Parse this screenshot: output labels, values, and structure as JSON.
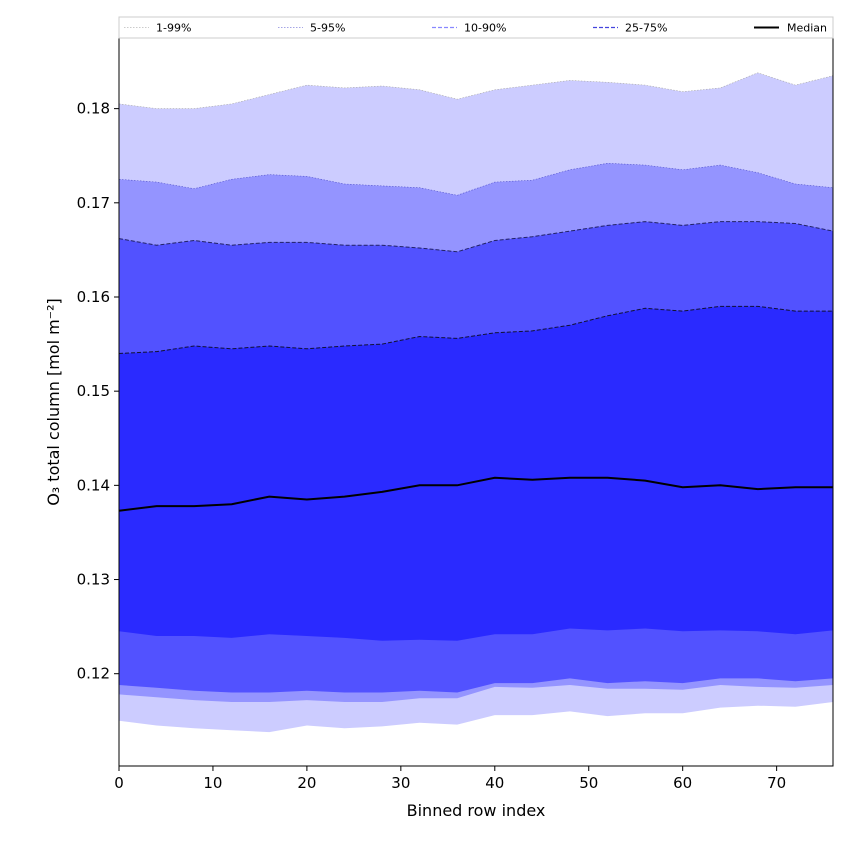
{
  "chart_data": {
    "type": "area",
    "xlabel": "Binned row index",
    "ylabel": "O₃ total column [mol m⁻²]",
    "xlim": [
      0,
      76
    ],
    "ylim": [
      0.1102,
      0.1875
    ],
    "xticks": [
      0,
      10,
      20,
      30,
      40,
      50,
      60,
      70
    ],
    "yticks": [
      0.12,
      0.13,
      0.14,
      0.15,
      0.16,
      0.17,
      0.18
    ],
    "ytick_labels": [
      "0.12",
      "0.13",
      "0.14",
      "0.15",
      "0.16",
      "0.17",
      "0.18"
    ],
    "legend_position": "top",
    "x": [
      0,
      4,
      8,
      12,
      16,
      20,
      24,
      28,
      32,
      36,
      40,
      44,
      48,
      52,
      56,
      60,
      64,
      68,
      72,
      76
    ],
    "series": [
      {
        "name": "1-99%",
        "color": "#ccccff",
        "lower": [
          0.115,
          0.1145,
          0.1142,
          0.114,
          0.1138,
          0.1145,
          0.1142,
          0.1144,
          0.1148,
          0.1146,
          0.1156,
          0.1156,
          0.116,
          0.1155,
          0.1158,
          0.1158,
          0.1164,
          0.1166,
          0.1165,
          0.117
        ],
        "upper": [
          0.1805,
          0.18,
          0.18,
          0.1805,
          0.1815,
          0.1825,
          0.1822,
          0.1824,
          0.182,
          0.181,
          0.182,
          0.1825,
          0.183,
          0.1828,
          0.1825,
          0.1818,
          0.1822,
          0.1838,
          0.1825,
          0.1835
        ]
      },
      {
        "name": "5-95%",
        "color": "#9494ff",
        "lower": [
          0.1178,
          0.1175,
          0.1172,
          0.117,
          0.117,
          0.1172,
          0.117,
          0.117,
          0.1174,
          0.1174,
          0.1186,
          0.1185,
          0.1188,
          0.1184,
          0.1184,
          0.1183,
          0.1188,
          0.1186,
          0.1185,
          0.1188
        ],
        "upper": [
          0.1725,
          0.1722,
          0.1715,
          0.1725,
          0.173,
          0.1728,
          0.172,
          0.1718,
          0.1716,
          0.1708,
          0.1722,
          0.1724,
          0.1735,
          0.1742,
          0.174,
          0.1735,
          0.174,
          0.1732,
          0.172,
          0.1716
        ]
      },
      {
        "name": "10-90%",
        "color": "#5252ff",
        "lower": [
          0.1188,
          0.1185,
          0.1182,
          0.118,
          0.118,
          0.1182,
          0.118,
          0.118,
          0.1182,
          0.118,
          0.119,
          0.119,
          0.1195,
          0.119,
          0.1192,
          0.119,
          0.1195,
          0.1195,
          0.1192,
          0.1195
        ],
        "upper": [
          0.1662,
          0.1655,
          0.166,
          0.1655,
          0.1658,
          0.1658,
          0.1655,
          0.1655,
          0.1652,
          0.1648,
          0.166,
          0.1664,
          0.167,
          0.1676,
          0.168,
          0.1676,
          0.168,
          0.168,
          0.1678,
          0.167
        ]
      },
      {
        "name": "25-75%",
        "color": "#2a2aff",
        "lower": [
          0.1245,
          0.124,
          0.124,
          0.1238,
          0.1242,
          0.124,
          0.1238,
          0.1235,
          0.1236,
          0.1235,
          0.1242,
          0.1242,
          0.1248,
          0.1246,
          0.1248,
          0.1245,
          0.1246,
          0.1245,
          0.1242,
          0.1246
        ],
        "upper": [
          0.154,
          0.1542,
          0.1548,
          0.1545,
          0.1548,
          0.1545,
          0.1548,
          0.155,
          0.1558,
          0.1556,
          0.1562,
          0.1564,
          0.157,
          0.158,
          0.1588,
          0.1585,
          0.159,
          0.159,
          0.1585,
          0.1585
        ]
      },
      {
        "name": "Median",
        "color": "#000000",
        "values": [
          0.1373,
          0.1378,
          0.1378,
          0.138,
          0.1388,
          0.1385,
          0.1388,
          0.1393,
          0.14,
          0.14,
          0.1408,
          0.1406,
          0.1408,
          0.1408,
          0.1405,
          0.1398,
          0.14,
          0.1396,
          0.1398,
          0.1398
        ]
      }
    ]
  }
}
